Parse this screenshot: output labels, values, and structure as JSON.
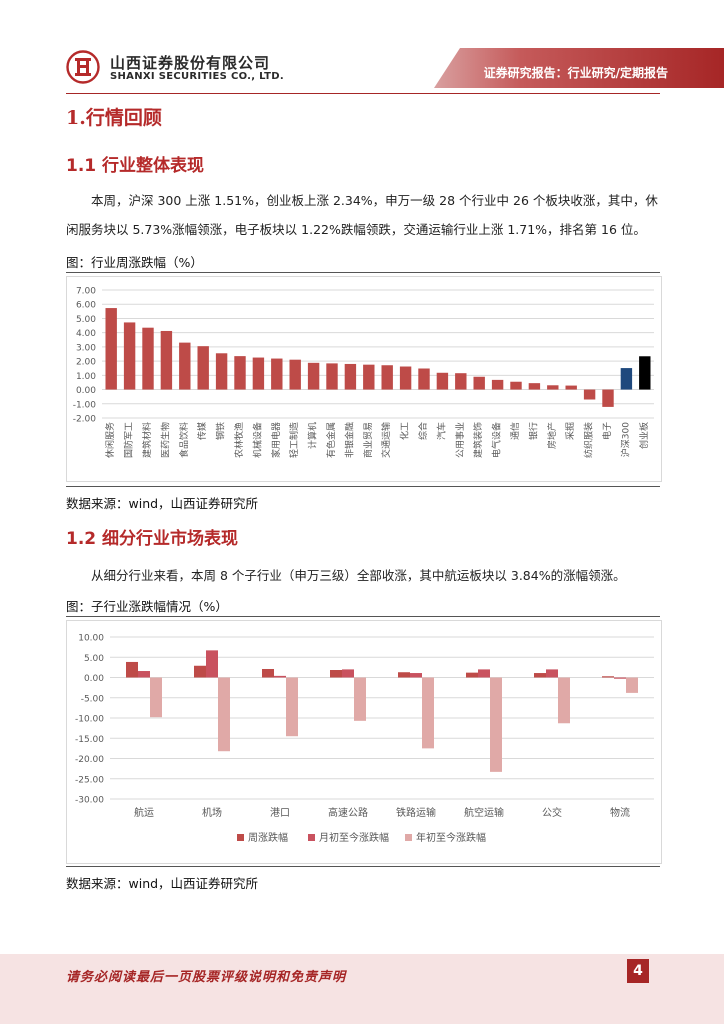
{
  "header": {
    "company_cn": "山西证券股份有限公司",
    "company_en": "SHANXI SECURITIES CO., LTD.",
    "banner": "证券研究报告：行业研究/定期报告"
  },
  "section1": {
    "title": "1.行情回顾"
  },
  "section1_1": {
    "title": "1.1  行业整体表现",
    "paragraph": "本周，沪深 300 上涨 1.51%，创业板上涨 2.34%，申万一级 28 个行业中 26 个板块收涨，其中，休闲服务块以 5.73%涨幅领涨，电子板块以 1.22%跌幅领跌，交通运输行业上涨 1.71%，排名第 16 位。",
    "caption": "图：行业周涨跌幅（%）",
    "source": "数据来源：wind，山西证券研究所"
  },
  "section1_2": {
    "title": "1.2  细分行业市场表现",
    "paragraph": "从细分行业来看，本周 8 个子行业（申万三级）全部收涨，其中航运板块以 3.84%的涨幅领涨。",
    "caption": "图：子行业涨跌幅情况（%）",
    "source": "数据来源：wind，山西证券研究所"
  },
  "footer": {
    "disclaimer": "请务必阅读最后一页股票评级说明和免责声明",
    "page": "4"
  },
  "colors": {
    "accent": "#a62626",
    "bar_red": "#be4b48",
    "bar_blue": "#1f497d",
    "bar_black": "#000000",
    "bar_pink": "#d99694"
  },
  "chart_data": [
    {
      "type": "bar",
      "categories": [
        "休闲服务",
        "国防军工",
        "建筑材料",
        "医药生物",
        "食品饮料",
        "传媒",
        "钢铁",
        "农林牧渔",
        "机械设备",
        "家用电器",
        "轻工制造",
        "计算机",
        "有色金属",
        "非银金融",
        "商业贸易",
        "交通运输",
        "化工",
        "综合",
        "汽车",
        "公用事业",
        "建筑装饰",
        "电气设备",
        "通信",
        "银行",
        "房地产",
        "采掘",
        "纺织服装",
        "电子",
        "沪深300",
        "创业板"
      ],
      "values": [
        5.73,
        4.72,
        4.35,
        4.12,
        3.3,
        3.05,
        2.55,
        2.35,
        2.25,
        2.18,
        2.1,
        1.88,
        1.84,
        1.8,
        1.75,
        1.71,
        1.62,
        1.48,
        1.18,
        1.15,
        0.9,
        0.68,
        0.55,
        0.45,
        0.3,
        0.28,
        -0.7,
        -1.22,
        1.51,
        2.34
      ],
      "bar_colors_special": {
        "沪深300": "#1f497d",
        "创业板": "#000000"
      },
      "ylim": [
        -2.0,
        7.0
      ],
      "yticks": [
        "7.00",
        "6.00",
        "5.00",
        "4.00",
        "3.00",
        "2.00",
        "1.00",
        "0.00",
        "-1.00",
        "-2.00"
      ],
      "grid": true
    },
    {
      "type": "bar",
      "categories": [
        "航运",
        "机场",
        "港口",
        "高速公路",
        "铁路运输",
        "航空运输",
        "公交",
        "物流"
      ],
      "series": [
        {
          "name": "周涨跌幅",
          "values": [
            3.84,
            2.9,
            2.1,
            1.85,
            1.3,
            1.2,
            1.1,
            0.3
          ]
        },
        {
          "name": "月初至今涨跌幅",
          "values": [
            1.6,
            6.7,
            0.4,
            2.0,
            1.1,
            2.0,
            2.0,
            -0.3
          ]
        },
        {
          "name": "年初至今涨跌幅",
          "values": [
            -9.8,
            -18.2,
            -14.5,
            -10.7,
            -17.5,
            -23.3,
            -11.3,
            -3.8
          ]
        }
      ],
      "ylim": [
        -30.0,
        10.0
      ],
      "yticks": [
        "10.00",
        "5.00",
        "0.00",
        "-5.00",
        "-10.00",
        "-15.00",
        "-20.00",
        "-25.00",
        "-30.00"
      ],
      "legend": "bottom",
      "grid": true
    }
  ]
}
